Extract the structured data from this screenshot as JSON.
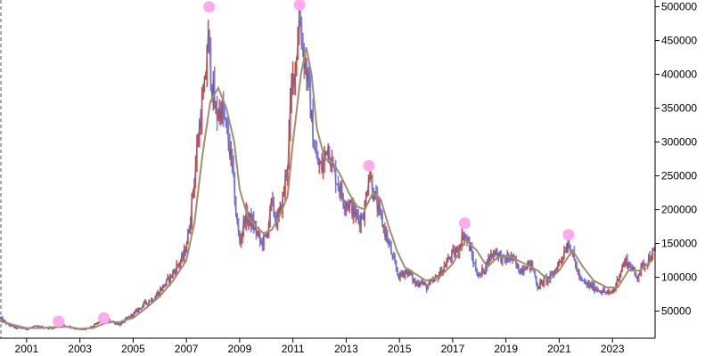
{
  "chart_data": {
    "type": "line",
    "title": "",
    "xlabel": "",
    "ylabel": "",
    "x_range": [
      2000.0,
      2024.6
    ],
    "ylim": [
      10000,
      510000
    ],
    "x_ticks": [
      "2001",
      "2003",
      "2005",
      "2007",
      "2009",
      "2011",
      "2013",
      "2015",
      "2017",
      "2019",
      "2021",
      "2023"
    ],
    "y_ticks": [
      50000,
      100000,
      150000,
      200000,
      250000,
      300000,
      350000,
      400000,
      450000,
      500000
    ],
    "grid": false,
    "colors": {
      "candle_up": "#c0392b",
      "candle_down": "#6a6ad8",
      "moving_average": "#a09070",
      "marker": "#ffaaee",
      "axis": "#000000",
      "left_dash": "#555555"
    },
    "series": [
      {
        "values": [
          [
            2000.0,
            40000
          ],
          [
            2000.3,
            30000
          ],
          [
            2000.6,
            25000
          ],
          [
            2001.0,
            24000
          ],
          [
            2001.3,
            27000
          ],
          [
            2001.6,
            26000
          ],
          [
            2002.0,
            25000
          ],
          [
            2002.3,
            30000
          ],
          [
            2002.6,
            27000
          ],
          [
            2003.0,
            22000
          ],
          [
            2003.3,
            24000
          ],
          [
            2003.6,
            30000
          ],
          [
            2003.9,
            40000
          ],
          [
            2004.2,
            35000
          ],
          [
            2004.5,
            30000
          ],
          [
            2004.8,
            40000
          ],
          [
            2005.0,
            45000
          ],
          [
            2005.4,
            60000
          ],
          [
            2005.8,
            70000
          ],
          [
            2006.1,
            85000
          ],
          [
            2006.4,
            100000
          ],
          [
            2006.7,
            120000
          ],
          [
            2006.9,
            130000
          ],
          [
            2007.1,
            170000
          ],
          [
            2007.3,
            250000
          ],
          [
            2007.5,
            330000
          ],
          [
            2007.7,
            380000
          ],
          [
            2007.8,
            460000
          ],
          [
            2007.95,
            390000
          ],
          [
            2008.1,
            340000
          ],
          [
            2008.3,
            350000
          ],
          [
            2008.5,
            320000
          ],
          [
            2008.7,
            270000
          ],
          [
            2008.9,
            180000
          ],
          [
            2009.0,
            150000
          ],
          [
            2009.2,
            190000
          ],
          [
            2009.4,
            185000
          ],
          [
            2009.6,
            170000
          ],
          [
            2009.8,
            150000
          ],
          [
            2010.0,
            160000
          ],
          [
            2010.2,
            210000
          ],
          [
            2010.4,
            180000
          ],
          [
            2010.6,
            210000
          ],
          [
            2010.8,
            270000
          ],
          [
            2010.95,
            380000
          ],
          [
            2011.1,
            420000
          ],
          [
            2011.25,
            490000
          ],
          [
            2011.4,
            430000
          ],
          [
            2011.6,
            380000
          ],
          [
            2011.75,
            310000
          ],
          [
            2011.9,
            270000
          ],
          [
            2012.1,
            260000
          ],
          [
            2012.3,
            300000
          ],
          [
            2012.5,
            260000
          ],
          [
            2012.7,
            240000
          ],
          [
            2012.9,
            215000
          ],
          [
            2013.1,
            210000
          ],
          [
            2013.3,
            195000
          ],
          [
            2013.5,
            185000
          ],
          [
            2013.7,
            200000
          ],
          [
            2013.85,
            260000
          ],
          [
            2014.0,
            230000
          ],
          [
            2014.2,
            200000
          ],
          [
            2014.4,
            175000
          ],
          [
            2014.6,
            150000
          ],
          [
            2014.8,
            120000
          ],
          [
            2015.0,
            100000
          ],
          [
            2015.2,
            110000
          ],
          [
            2015.4,
            105000
          ],
          [
            2015.6,
            90000
          ],
          [
            2015.8,
            95000
          ],
          [
            2016.0,
            85000
          ],
          [
            2016.3,
            95000
          ],
          [
            2016.6,
            110000
          ],
          [
            2016.9,
            130000
          ],
          [
            2017.2,
            140000
          ],
          [
            2017.4,
            165000
          ],
          [
            2017.6,
            150000
          ],
          [
            2017.8,
            120000
          ],
          [
            2018.0,
            100000
          ],
          [
            2018.2,
            115000
          ],
          [
            2018.4,
            130000
          ],
          [
            2018.6,
            140000
          ],
          [
            2018.9,
            125000
          ],
          [
            2019.2,
            130000
          ],
          [
            2019.5,
            110000
          ],
          [
            2019.8,
            120000
          ],
          [
            2020.0,
            115000
          ],
          [
            2020.2,
            85000
          ],
          [
            2020.4,
            95000
          ],
          [
            2020.7,
            100000
          ],
          [
            2020.9,
            115000
          ],
          [
            2021.1,
            130000
          ],
          [
            2021.35,
            155000
          ],
          [
            2021.6,
            120000
          ],
          [
            2021.8,
            95000
          ],
          [
            2022.0,
            90000
          ],
          [
            2022.3,
            85000
          ],
          [
            2022.6,
            80000
          ],
          [
            2022.9,
            75000
          ],
          [
            2023.1,
            85000
          ],
          [
            2023.3,
            110000
          ],
          [
            2023.5,
            125000
          ],
          [
            2023.7,
            115000
          ],
          [
            2023.9,
            100000
          ],
          [
            2024.1,
            115000
          ],
          [
            2024.3,
            125000
          ],
          [
            2024.5,
            135000
          ]
        ]
      },
      {
        "values": [
          [
            2000.0,
            35000
          ],
          [
            2000.5,
            30000
          ],
          [
            2001.0,
            25000
          ],
          [
            2001.5,
            25000
          ],
          [
            2002.0,
            26000
          ],
          [
            2002.5,
            27000
          ],
          [
            2003.0,
            24000
          ],
          [
            2003.5,
            25000
          ],
          [
            2004.0,
            33000
          ],
          [
            2004.5,
            34000
          ],
          [
            2005.0,
            40000
          ],
          [
            2005.5,
            55000
          ],
          [
            2006.0,
            72000
          ],
          [
            2006.5,
            95000
          ],
          [
            2007.0,
            125000
          ],
          [
            2007.3,
            180000
          ],
          [
            2007.6,
            280000
          ],
          [
            2007.9,
            360000
          ],
          [
            2008.2,
            380000
          ],
          [
            2008.5,
            350000
          ],
          [
            2008.8,
            300000
          ],
          [
            2009.0,
            230000
          ],
          [
            2009.3,
            190000
          ],
          [
            2009.6,
            175000
          ],
          [
            2009.9,
            165000
          ],
          [
            2010.2,
            170000
          ],
          [
            2010.5,
            190000
          ],
          [
            2010.8,
            220000
          ],
          [
            2011.0,
            300000
          ],
          [
            2011.3,
            400000
          ],
          [
            2011.5,
            440000
          ],
          [
            2011.7,
            400000
          ],
          [
            2011.9,
            320000
          ],
          [
            2012.2,
            275000
          ],
          [
            2012.5,
            270000
          ],
          [
            2012.8,
            250000
          ],
          [
            2013.1,
            225000
          ],
          [
            2013.4,
            205000
          ],
          [
            2013.7,
            200000
          ],
          [
            2014.0,
            225000
          ],
          [
            2014.3,
            215000
          ],
          [
            2014.6,
            175000
          ],
          [
            2014.9,
            140000
          ],
          [
            2015.2,
            115000
          ],
          [
            2015.6,
            105000
          ],
          [
            2016.0,
            95000
          ],
          [
            2016.5,
            100000
          ],
          [
            2017.0,
            120000
          ],
          [
            2017.5,
            155000
          ],
          [
            2017.9,
            140000
          ],
          [
            2018.3,
            115000
          ],
          [
            2018.7,
            130000
          ],
          [
            2019.2,
            130000
          ],
          [
            2019.7,
            120000
          ],
          [
            2020.2,
            110000
          ],
          [
            2020.6,
            95000
          ],
          [
            2021.0,
            110000
          ],
          [
            2021.5,
            140000
          ],
          [
            2021.9,
            115000
          ],
          [
            2022.3,
            95000
          ],
          [
            2022.8,
            85000
          ],
          [
            2023.2,
            85000
          ],
          [
            2023.6,
            110000
          ],
          [
            2024.0,
            110000
          ],
          [
            2024.5,
            125000
          ]
        ]
      }
    ],
    "peak_markers": [
      [
        2002.2,
        35000
      ],
      [
        2003.9,
        40000
      ],
      [
        2007.85,
        500000
      ],
      [
        2011.25,
        503000
      ],
      [
        2013.85,
        265000
      ],
      [
        2017.45,
        180000
      ],
      [
        2021.35,
        163000
      ]
    ]
  }
}
